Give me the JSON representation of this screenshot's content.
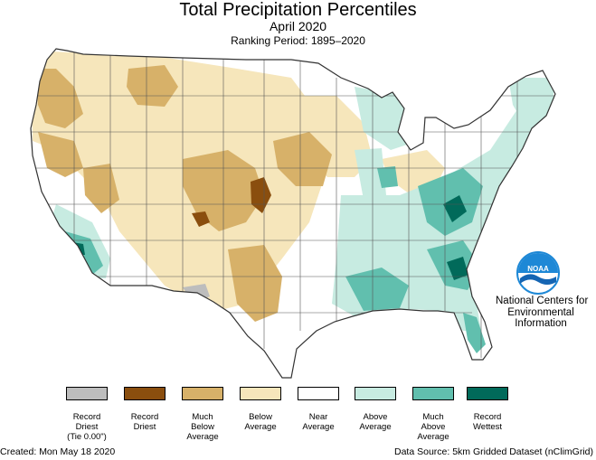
{
  "header": {
    "title": "Total Precipitation Percentiles",
    "subtitle": "April 2020",
    "ranking_period": "Ranking Period: 1895–2020"
  },
  "agency": {
    "lines": [
      "National Centers for",
      "Environmental",
      "Information"
    ],
    "logo_text": "NOAA"
  },
  "legend": {
    "items": [
      {
        "lines": [
          "Record",
          "Driest",
          "(Tie 0.00\")"
        ],
        "color": "#bdbdbd"
      },
      {
        "lines": [
          "Record",
          "Driest"
        ],
        "color": "#8a4e0e"
      },
      {
        "lines": [
          "Much",
          "Below",
          "Average"
        ],
        "color": "#d7b169"
      },
      {
        "lines": [
          "Below",
          "Average"
        ],
        "color": "#f6e6bb"
      },
      {
        "lines": [
          "Near",
          "Average"
        ],
        "color": "#ffffff"
      },
      {
        "lines": [
          "Above",
          "Average"
        ],
        "color": "#c7ebe1"
      },
      {
        "lines": [
          "Much",
          "Above",
          "Average"
        ],
        "color": "#61bfae"
      },
      {
        "lines": [
          "Record",
          "Wettest"
        ],
        "color": "#016a5a"
      }
    ]
  },
  "footer": {
    "created": "Created: Mon May 18 2020",
    "source": "Data Source: 5km Gridded Dataset (nClimGrid)"
  },
  "palette": {
    "much_below": "#d7b169",
    "below": "#f6e6bb",
    "near": "#ffffff",
    "above": "#c7ebe1",
    "much_above": "#61bfae",
    "record_wet": "#016a5a",
    "record_dry": "#8a4e0e",
    "record_dry_tie": "#bdbdbd",
    "noaa_blue": "#1e88d6"
  }
}
